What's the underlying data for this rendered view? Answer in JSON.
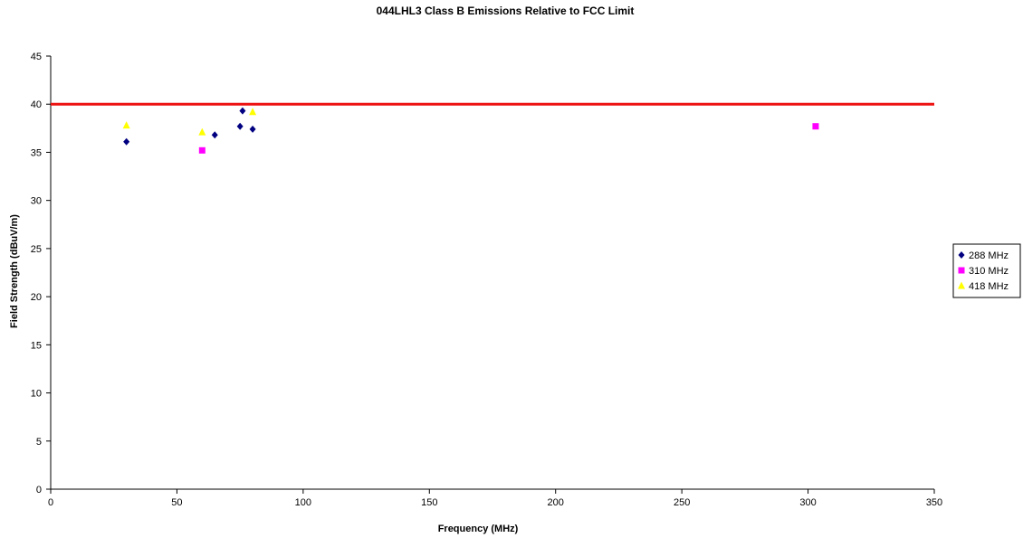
{
  "chart_data": {
    "type": "scatter",
    "title": "044LHL3 Class B Emissions Relative to FCC Limit",
    "xlabel": "Frequency (MHz)",
    "ylabel": "Field Strength (dBuV/m)",
    "xlim": [
      0,
      350
    ],
    "ylim": [
      0,
      45
    ],
    "x_ticks": [
      "0",
      "50",
      "100",
      "150",
      "200",
      "250",
      "300",
      "350"
    ],
    "y_ticks": [
      "0",
      "5",
      "10",
      "15",
      "20",
      "25",
      "30",
      "35",
      "40",
      "45"
    ],
    "grid": false,
    "legend_position": "right",
    "limit_line": {
      "y": 40,
      "color": "#ee1111"
    },
    "series": [
      {
        "name": "288 MHz",
        "marker": "diamond",
        "color": "#000080",
        "points": [
          [
            30,
            36.1
          ],
          [
            65,
            36.8
          ],
          [
            75,
            37.7
          ],
          [
            76,
            39.3
          ],
          [
            80,
            37.4
          ]
        ]
      },
      {
        "name": "310 MHz",
        "marker": "square",
        "color": "#ff00ff",
        "points": [
          [
            60,
            35.2
          ],
          [
            303,
            37.7
          ]
        ]
      },
      {
        "name": "418 MHz",
        "marker": "triangle",
        "color": "#ffff00",
        "points": [
          [
            30,
            37.8
          ],
          [
            60,
            37.1
          ],
          [
            80,
            39.2
          ]
        ]
      }
    ]
  }
}
